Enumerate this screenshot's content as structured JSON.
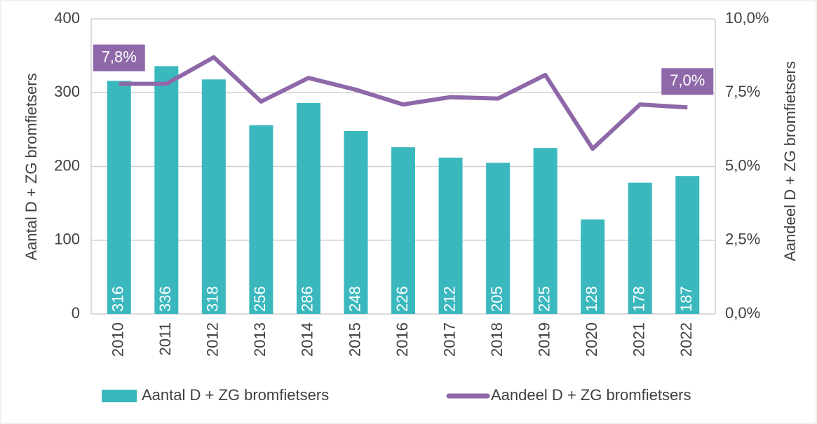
{
  "chart_data": {
    "type": "bar-line",
    "categories": [
      "2010",
      "2011",
      "2012",
      "2013",
      "2014",
      "2015",
      "2016",
      "2017",
      "2018",
      "2019",
      "2020",
      "2021",
      "2022"
    ],
    "ylabel": "Aantal D + ZG bromfietsers",
    "y2label": "Aandeel D + ZG bromfietsers",
    "ylim": [
      0,
      400
    ],
    "yticks": [
      0,
      100,
      200,
      300,
      400
    ],
    "y2lim": [
      0,
      10
    ],
    "y2ticks": [
      {
        "value": 0,
        "label": "0,0%"
      },
      {
        "value": 2.5,
        "label": "2,5%"
      },
      {
        "value": 5,
        "label": "5,0%"
      },
      {
        "value": 7.5,
        "label": "7,5%"
      },
      {
        "value": 10,
        "label": "10,0%"
      }
    ],
    "grid": true,
    "legend": "bottom",
    "series": [
      {
        "name": "Aantal D + ZG bromfietsers",
        "type": "bar",
        "color": "#3ab8be",
        "values": [
          316,
          336,
          318,
          256,
          286,
          248,
          226,
          212,
          205,
          225,
          128,
          178,
          187
        ]
      },
      {
        "name": "Aandeel D + ZG bromfietsers",
        "type": "line",
        "axis": "y2",
        "color": "#8e68a8",
        "values": [
          7.8,
          7.8,
          8.7,
          7.2,
          8.0,
          7.6,
          7.1,
          7.35,
          7.3,
          8.1,
          5.6,
          7.1,
          7.0
        ],
        "value_labels": [
          "7,8%",
          null,
          null,
          null,
          null,
          null,
          null,
          null,
          null,
          null,
          null,
          null,
          "7,0%"
        ]
      }
    ]
  }
}
